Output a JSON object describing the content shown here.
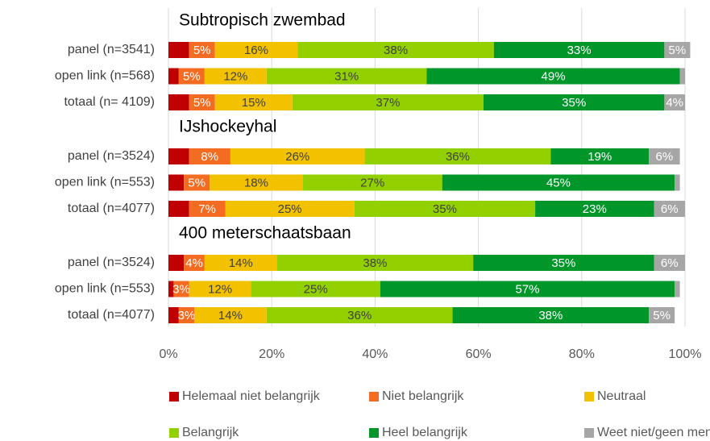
{
  "chart_data": {
    "type": "bar",
    "orientation": "horizontal",
    "stacked": true,
    "groups": [
      {
        "title": "Subtropisch zwembad",
        "categories": [
          "panel (n=3541)",
          "open link (n=568)",
          "totaal (n= 4109)"
        ]
      },
      {
        "title": "IJshockeyhal",
        "categories": [
          "panel (n=3524)",
          "open link (n=553)",
          "totaal (n=4077)"
        ]
      },
      {
        "title": "400 meterschaatsbaan",
        "categories": [
          "panel (n=3524)",
          "open link (n=553)",
          "totaal (n=4077)"
        ]
      }
    ],
    "series": [
      {
        "name": "Helemaal niet belangrijk",
        "color": "#c00000",
        "label_color": "#ffffff",
        "values": [
          [
            4,
            2,
            4
          ],
          [
            4,
            3,
            4
          ],
          [
            3,
            1,
            2
          ]
        ],
        "value_labels": [
          [
            null,
            null,
            null
          ],
          [
            null,
            null,
            null
          ],
          [
            null,
            null,
            null
          ]
        ]
      },
      {
        "name": "Niet belangrijk",
        "color": "#f36c21",
        "label_color": "#ffffff",
        "values": [
          [
            5,
            5,
            5
          ],
          [
            8,
            5,
            7
          ],
          [
            4,
            3,
            3
          ]
        ],
        "value_labels": [
          [
            "5%",
            "5%",
            "5%"
          ],
          [
            "8%",
            "5%",
            "7%"
          ],
          [
            "4%",
            "3%",
            "3%"
          ]
        ]
      },
      {
        "name": "Neutraal",
        "color": "#f2c200",
        "label_color": "#404040",
        "values": [
          [
            16,
            12,
            15
          ],
          [
            26,
            18,
            25
          ],
          [
            14,
            12,
            14
          ]
        ],
        "value_labels": [
          [
            "16%",
            "12%",
            "15%"
          ],
          [
            "26%",
            "18%",
            "25%"
          ],
          [
            "14%",
            "12%",
            "14%"
          ]
        ]
      },
      {
        "name": "Belangrijk",
        "color": "#92d000",
        "label_color": "#404040",
        "values": [
          [
            38,
            31,
            37
          ],
          [
            36,
            27,
            35
          ],
          [
            38,
            25,
            36
          ]
        ],
        "value_labels": [
          [
            "38%",
            "31%",
            "37%"
          ],
          [
            "36%",
            "27%",
            "35%"
          ],
          [
            "38%",
            "25%",
            "36%"
          ]
        ]
      },
      {
        "name": "Heel belangrijk",
        "color": "#00962a",
        "label_color": "#ffffff",
        "values": [
          [
            33,
            49,
            35
          ],
          [
            19,
            45,
            23
          ],
          [
            35,
            57,
            38
          ]
        ],
        "value_labels": [
          [
            "33%",
            "49%",
            "35%"
          ],
          [
            "19%",
            "45%",
            "23%"
          ],
          [
            "35%",
            "57%",
            "38%"
          ]
        ]
      },
      {
        "name": "Weet niet/geen mening",
        "color": "#a6a6a6",
        "label_color": "#ffffff",
        "values": [
          [
            5,
            1,
            4
          ],
          [
            6,
            1,
            6
          ],
          [
            6,
            1,
            5
          ]
        ],
        "value_labels": [
          [
            "5%",
            null,
            "4%"
          ],
          [
            "6%",
            null,
            "6%"
          ],
          [
            "6%",
            null,
            "5%"
          ]
        ]
      }
    ],
    "xlim": [
      0,
      100
    ],
    "xticks": [
      {
        "value": 0,
        "label": "0%"
      },
      {
        "value": 20,
        "label": "20%"
      },
      {
        "value": 40,
        "label": "40%"
      },
      {
        "value": 60,
        "label": "60%"
      },
      {
        "value": 80,
        "label": "80%"
      },
      {
        "value": 100,
        "label": "100%"
      }
    ],
    "grid": true
  }
}
